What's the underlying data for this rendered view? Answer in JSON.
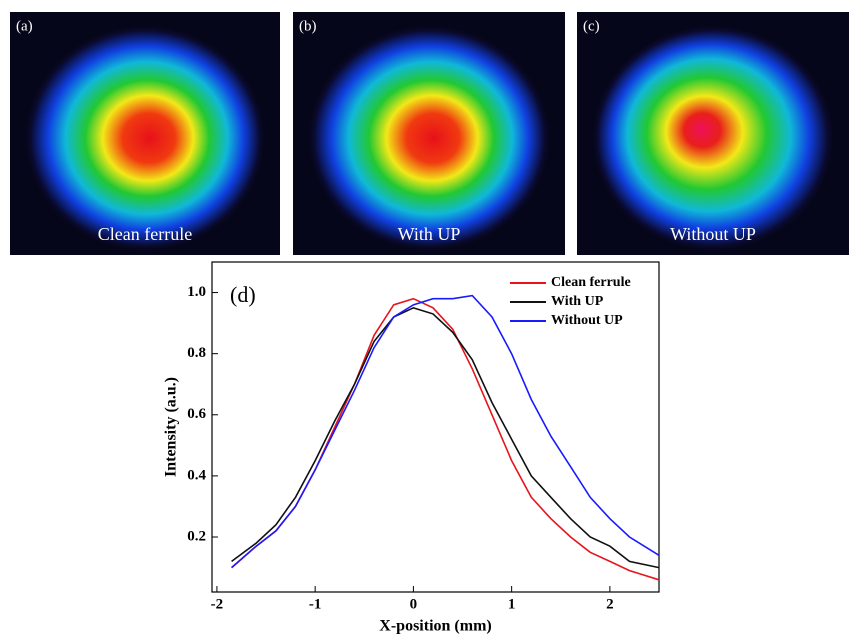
{
  "panels": [
    {
      "tag": "(a)",
      "label": "Clean ferrule"
    },
    {
      "tag": "(b)",
      "label": "With UP"
    },
    {
      "tag": "(c)",
      "label": "Without UP"
    }
  ],
  "chart_data": {
    "type": "line",
    "annotation": "(d)",
    "x_label": "X-position (mm)",
    "y_label": "Intensity (a.u.)",
    "x": [
      -1.85,
      -1.6,
      -1.4,
      -1.2,
      -1.0,
      -0.8,
      -0.6,
      -0.4,
      -0.2,
      0,
      0.2,
      0.4,
      0.6,
      0.8,
      1.0,
      1.2,
      1.4,
      1.6,
      1.8,
      2.0,
      2.2,
      2.5
    ],
    "series": [
      {
        "name": "Clean ferrule",
        "color": "#e8141c",
        "values": [
          0.1,
          0.17,
          0.22,
          0.3,
          0.42,
          0.56,
          0.7,
          0.86,
          0.96,
          0.98,
          0.95,
          0.88,
          0.75,
          0.6,
          0.45,
          0.33,
          0.26,
          0.2,
          0.15,
          0.12,
          0.09,
          0.06
        ]
      },
      {
        "name": "With UP",
        "color": "#111111",
        "values": [
          0.12,
          0.18,
          0.24,
          0.33,
          0.45,
          0.58,
          0.7,
          0.84,
          0.92,
          0.95,
          0.93,
          0.87,
          0.78,
          0.64,
          0.52,
          0.4,
          0.33,
          0.26,
          0.2,
          0.17,
          0.12,
          0.1
        ]
      },
      {
        "name": "Without UP",
        "color": "#1a1aff",
        "values": [
          0.1,
          0.17,
          0.22,
          0.3,
          0.42,
          0.55,
          0.68,
          0.82,
          0.92,
          0.96,
          0.98,
          0.98,
          0.99,
          0.92,
          0.8,
          0.65,
          0.53,
          0.43,
          0.33,
          0.26,
          0.2,
          0.14
        ]
      }
    ],
    "xlim": [
      -2.05,
      2.5
    ],
    "xticks": [
      -2,
      -1,
      0,
      1,
      2
    ],
    "ylim": [
      0.02,
      1.1
    ],
    "yticks": [
      0.2,
      0.4,
      0.6,
      0.8,
      {
        "value": 1,
        "label": "1.0"
      }
    ],
    "legend": "upper right"
  }
}
